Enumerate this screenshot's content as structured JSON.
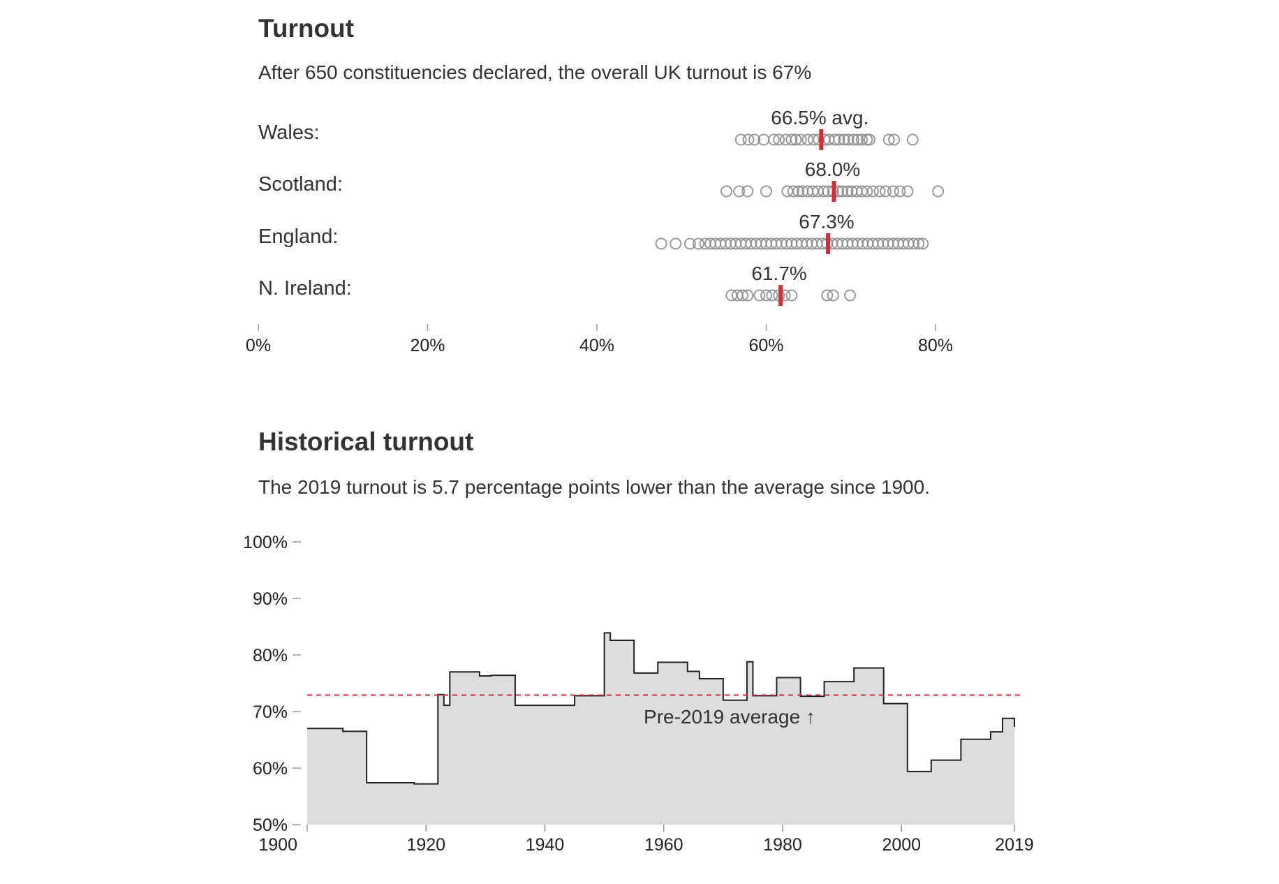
{
  "turnout": {
    "title": "Turnout",
    "subtitle": "After 650 constituencies declared, the overall UK turnout is 67%"
  },
  "historical": {
    "title": "Historical turnout",
    "subtitle": "The 2019 turnout is 5.7 percentage points lower than the average since 1900."
  },
  "colors": {
    "accent": "#d0303a",
    "marker": "#888888",
    "area": "#dddddd",
    "line": "#222222"
  },
  "chart_data": [
    {
      "type": "scatter",
      "x_ticks": [
        "0%",
        "20%",
        "40%",
        "60%",
        "80%"
      ],
      "xlim": [
        0,
        80
      ],
      "regions": [
        {
          "name": "Wales:",
          "avg": 66.5,
          "avg_label": "66.5% avg.",
          "values": [
            57.0,
            57.9,
            58.6,
            59.7,
            60.9,
            61.5,
            62.3,
            63.0,
            63.5,
            64.1,
            64.9,
            65.6,
            66.2,
            66.9,
            67.4,
            68.1,
            68.6,
            69.2,
            69.7,
            70.3,
            70.8,
            71.3,
            71.9,
            72.2,
            74.5,
            75.1,
            77.3
          ]
        },
        {
          "name": "Scotland:",
          "avg": 68.0,
          "avg_label": "68.0%",
          "values": [
            55.3,
            56.8,
            57.8,
            60.0,
            62.5,
            63.2,
            63.8,
            64.3,
            64.9,
            65.5,
            66.1,
            66.8,
            67.3,
            67.9,
            68.5,
            69.0,
            69.6,
            70.1,
            70.7,
            71.3,
            71.9,
            72.6,
            73.4,
            74.1,
            75.0,
            75.8,
            76.7,
            80.3
          ]
        },
        {
          "name": "England:",
          "avg": 67.3,
          "avg_label": "67.3%",
          "values": [
            47.6,
            49.3,
            51.0,
            52.0,
            52.8,
            53.4,
            54.0,
            54.6,
            55.2,
            55.8,
            56.4,
            57.0,
            57.6,
            58.2,
            58.8,
            59.4,
            60.0,
            60.6,
            61.2,
            61.8,
            62.4,
            63.0,
            63.6,
            64.2,
            64.8,
            65.4,
            66.0,
            66.6,
            67.2,
            67.8,
            68.4,
            69.0,
            69.6,
            70.2,
            70.8,
            71.4,
            72.0,
            72.6,
            73.2,
            73.8,
            74.4,
            75.0,
            75.6,
            76.2,
            76.8,
            77.4,
            78.0,
            78.5
          ]
        },
        {
          "name": "N. Ireland:",
          "avg": 61.7,
          "avg_label": "61.7%",
          "values": [
            55.9,
            56.6,
            57.2,
            57.8,
            59.2,
            60.0,
            60.7,
            61.5,
            62.2,
            63.0,
            67.2,
            67.9,
            69.9
          ]
        }
      ]
    },
    {
      "type": "area",
      "title": "Historical turnout",
      "y_ticks": [
        "100%",
        "90%",
        "80%",
        "70%",
        "60%",
        "50%"
      ],
      "x_ticks": [
        "1900",
        "1920",
        "1940",
        "1960",
        "1980",
        "2000",
        "2019"
      ],
      "ylim": [
        50,
        100
      ],
      "xlim": [
        1900,
        2019
      ],
      "average": 72.9,
      "average_label": "Pre-2019 average ↑",
      "elections": [
        {
          "year": 1900,
          "turnout": 67
        },
        {
          "year": 1906,
          "turnout": 66.5
        },
        {
          "year": 1910,
          "turnout": 57.4
        },
        {
          "year": 1918,
          "turnout": 57.2
        },
        {
          "year": 1922,
          "turnout": 73
        },
        {
          "year": 1923,
          "turnout": 71.1
        },
        {
          "year": 1924,
          "turnout": 77
        },
        {
          "year": 1929,
          "turnout": 76.3
        },
        {
          "year": 1931,
          "turnout": 76.4
        },
        {
          "year": 1935,
          "turnout": 71.1
        },
        {
          "year": 1945,
          "turnout": 72.8
        },
        {
          "year": 1950,
          "turnout": 83.9
        },
        {
          "year": 1951,
          "turnout": 82.6
        },
        {
          "year": 1955,
          "turnout": 76.8
        },
        {
          "year": 1959,
          "turnout": 78.7
        },
        {
          "year": 1964,
          "turnout": 77.1
        },
        {
          "year": 1966,
          "turnout": 75.8
        },
        {
          "year": 1970,
          "turnout": 72
        },
        {
          "year": 1974,
          "turnout": 78.8
        },
        {
          "year": 1975,
          "turnout": 72.8
        },
        {
          "year": 1979,
          "turnout": 76
        },
        {
          "year": 1983,
          "turnout": 72.7
        },
        {
          "year": 1987,
          "turnout": 75.3
        },
        {
          "year": 1992,
          "turnout": 77.7
        },
        {
          "year": 1997,
          "turnout": 71.4
        },
        {
          "year": 2001,
          "turnout": 59.4
        },
        {
          "year": 2005,
          "turnout": 61.4
        },
        {
          "year": 2010,
          "turnout": 65.1
        },
        {
          "year": 2015,
          "turnout": 66.4
        },
        {
          "year": 2017,
          "turnout": 68.8
        },
        {
          "year": 2019,
          "turnout": 67.3
        }
      ]
    }
  ]
}
